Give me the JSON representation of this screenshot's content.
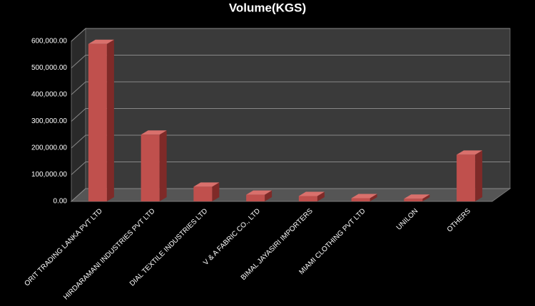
{
  "chart_data": {
    "type": "bar3d",
    "title": "Volume(KGS)",
    "categories": [
      "ORIT TRADING LANKA PVT LTD",
      "HIRDARAMANI INDUSTRIES PVT LTD",
      "DIAL TEXTILE INDUSTRIES LTD",
      "V & A FABRIC CO., LTD",
      "BIMAL JAYASIRI IMPORTERS",
      "MIAMI CLOTHING PVT LTD",
      "UNILON",
      "OTHERS"
    ],
    "values": [
      590000,
      250000,
      55000,
      25000,
      20000,
      12000,
      10000,
      175000
    ],
    "color": "#c0504d",
    "ylim": [
      0,
      600000
    ],
    "yticks": [
      {
        "value": 0,
        "label": "0.00"
      },
      {
        "value": 100000,
        "label": "100,000.00"
      },
      {
        "value": 200000,
        "label": "200,000.00"
      },
      {
        "value": 300000,
        "label": "300,000.00"
      },
      {
        "value": 400000,
        "label": "400,000.00"
      },
      {
        "value": 500000,
        "label": "500,000.00"
      },
      {
        "value": 600000,
        "label": "600,000.00"
      }
    ],
    "grid": true
  }
}
